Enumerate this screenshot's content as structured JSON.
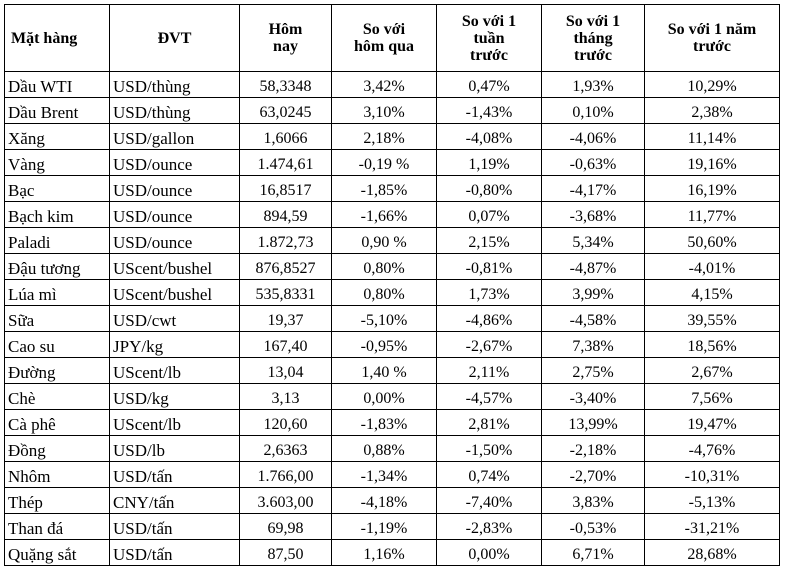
{
  "table": {
    "headers": [
      {
        "lines": [
          "Mặt hàng"
        ]
      },
      {
        "lines": [
          "ĐVT"
        ]
      },
      {
        "lines": [
          "Hôm",
          "nay"
        ]
      },
      {
        "lines": [
          "So với",
          "hôm qua"
        ]
      },
      {
        "lines": [
          "So với 1",
          "tuần",
          "trước"
        ]
      },
      {
        "lines": [
          "So với 1",
          "tháng",
          "trước"
        ]
      },
      {
        "lines": [
          "So với 1 năm",
          "trước"
        ]
      }
    ],
    "rows": [
      [
        "Dầu WTI",
        "USD/thùng",
        "58,3348",
        "3,42%",
        "0,47%",
        "1,93%",
        "10,29%"
      ],
      [
        "Dầu Brent",
        "USD/thùng",
        "63,0245",
        "3,10%",
        "-1,43%",
        "0,10%",
        "2,38%"
      ],
      [
        "Xăng",
        "USD/gallon",
        "1,6066",
        "2,18%",
        "-4,08%",
        "-4,06%",
        "11,14%"
      ],
      [
        "Vàng",
        "USD/ounce",
        "1.474,61",
        "-0,19 %",
        "1,19%",
        "-0,63%",
        "19,16%"
      ],
      [
        "Bạc",
        "USD/ounce",
        "16,8517",
        "-1,85%",
        "-0,80%",
        "-4,17%",
        "16,19%"
      ],
      [
        "Bạch kim",
        "USD/ounce",
        "894,59",
        "-1,66%",
        "0,07%",
        "-3,68%",
        "11,77%"
      ],
      [
        "Paladi",
        "USD/ounce",
        "1.872,73",
        "0,90 %",
        "2,15%",
        "5,34%",
        "50,60%"
      ],
      [
        "Đậu tương",
        "UScent/bushel",
        "876,8527",
        "0,80%",
        "-0,81%",
        "-4,87%",
        "-4,01%"
      ],
      [
        "Lúa mì",
        "UScent/bushel",
        "535,8331",
        "0,80%",
        "1,73%",
        "3,99%",
        "4,15%"
      ],
      [
        "Sữa",
        "USD/cwt",
        "19,37",
        "-5,10%",
        "-4,86%",
        "-4,58%",
        "39,55%"
      ],
      [
        "Cao su",
        "JPY/kg",
        "167,40",
        "-0,95%",
        "-2,67%",
        "7,38%",
        "18,56%"
      ],
      [
        "Đường",
        "UScent/lb",
        "13,04",
        "1,40 %",
        "2,11%",
        "2,75%",
        "2,67%"
      ],
      [
        "Chè",
        "USD/kg",
        "3,13",
        "0,00%",
        "-4,57%",
        "-3,40%",
        "7,56%"
      ],
      [
        "Cà phê",
        "UScent/lb",
        "120,60",
        "-1,83%",
        "2,81%",
        "13,99%",
        "19,47%"
      ],
      [
        "Đồng",
        "USD/lb",
        "2,6363",
        "0,88%",
        "-1,50%",
        "-2,18%",
        "-4,76%"
      ],
      [
        "Nhôm",
        "USD/tấn",
        "1.766,00",
        "-1,34%",
        "0,74%",
        "-2,70%",
        "-10,31%"
      ],
      [
        "Thép",
        "CNY/tấn",
        "3.603,00",
        "-4,18%",
        "-7,40%",
        "3,83%",
        "-5,13%"
      ],
      [
        "Than đá",
        "USD/tấn",
        "69,98",
        "-1,19%",
        "-2,83%",
        "-0,53%",
        "-31,21%"
      ],
      [
        "Quặng sắt",
        "USD/tấn",
        "87,50",
        "1,16%",
        "0,00%",
        "6,71%",
        "28,68%"
      ]
    ]
  }
}
